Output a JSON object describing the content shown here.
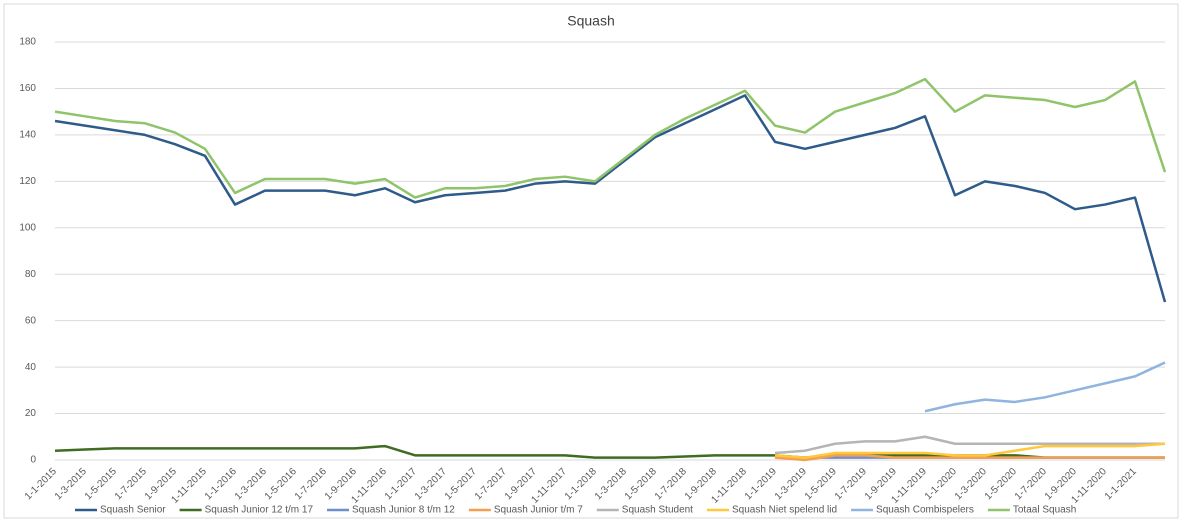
{
  "chart_data": {
    "type": "line",
    "title": "Squash",
    "categories": [
      "1-1-2015",
      "1-3-2015",
      "1-5-2015",
      "1-7-2015",
      "1-9-2015",
      "1-11-2015",
      "1-1-2016",
      "1-3-2016",
      "1-5-2016",
      "1-7-2016",
      "1-9-2016",
      "1-11-2016",
      "1-1-2017",
      "1-3-2017",
      "1-5-2017",
      "1-7-2017",
      "1-9-2017",
      "1-11-2017",
      "1-1-2018",
      "1-3-2018",
      "1-5-2018",
      "1-7-2018",
      "1-9-2018",
      "1-11-2018",
      "1-1-2019",
      "1-3-2019",
      "1-5-2019",
      "1-7-2019",
      "1-9-2019",
      "1-11-2019",
      "1-1-2020",
      "1-3-2020",
      "1-5-2020",
      "1-7-2020",
      "1-9-2020",
      "1-11-2020",
      "1-1-2021",
      null
    ],
    "series": [
      {
        "name": "Squash Senior",
        "color": "#2e5b8a",
        "values": [
          146,
          144,
          142,
          140,
          136,
          131,
          110,
          116,
          116,
          116,
          114,
          117,
          111,
          114,
          115,
          116,
          119,
          120,
          119,
          129,
          139,
          145,
          151,
          157,
          137,
          134,
          137,
          140,
          143,
          148,
          114,
          120,
          118,
          115,
          108,
          110,
          113,
          68
        ]
      },
      {
        "name": "Squash Junior 12 t/m 17",
        "color": "#3f6b22",
        "values": [
          4,
          4.5,
          5,
          5,
          5,
          5,
          5,
          5,
          5,
          5,
          5,
          6,
          2,
          2,
          2,
          2,
          2,
          2,
          1,
          1,
          1,
          1.5,
          2,
          2,
          2,
          1,
          2,
          2,
          2,
          2,
          2,
          2,
          2,
          1,
          1,
          1,
          1,
          1
        ]
      },
      {
        "name": "Squash Junior 8 t/m 12",
        "color": "#6e8fc9",
        "values": [
          null,
          null,
          null,
          null,
          null,
          null,
          null,
          null,
          null,
          null,
          null,
          null,
          null,
          null,
          null,
          null,
          null,
          null,
          null,
          null,
          null,
          null,
          null,
          null,
          1,
          1,
          1,
          1,
          1,
          1,
          1,
          1,
          1,
          1,
          1,
          1,
          1,
          1
        ]
      },
      {
        "name": "Squash Junior t/m 7",
        "color": "#f4a050",
        "values": [
          null,
          null,
          null,
          null,
          null,
          null,
          null,
          null,
          null,
          null,
          null,
          null,
          null,
          null,
          null,
          null,
          null,
          null,
          null,
          null,
          null,
          null,
          null,
          null,
          1,
          0,
          2,
          2,
          1,
          1,
          1,
          1,
          1,
          1,
          1,
          1,
          1,
          1
        ]
      },
      {
        "name": "Squash Student",
        "color": "#b5b5b5",
        "values": [
          null,
          null,
          null,
          null,
          null,
          null,
          null,
          null,
          null,
          null,
          null,
          null,
          null,
          null,
          null,
          null,
          null,
          null,
          null,
          null,
          null,
          null,
          null,
          null,
          3,
          4,
          7,
          8,
          8,
          10,
          7,
          7,
          7,
          7,
          7,
          7,
          7,
          7
        ]
      },
      {
        "name": "Squash Niet spelend lid",
        "color": "#ffc83d",
        "values": [
          null,
          null,
          null,
          null,
          null,
          null,
          null,
          null,
          null,
          null,
          null,
          null,
          null,
          null,
          null,
          null,
          null,
          null,
          null,
          null,
          null,
          null,
          null,
          null,
          2,
          1,
          3,
          3,
          3,
          3,
          2,
          2,
          4,
          6,
          6,
          6,
          6,
          7
        ]
      },
      {
        "name": "Squash Combispelers",
        "color": "#8fb4e0",
        "values": [
          null,
          null,
          null,
          null,
          null,
          null,
          null,
          null,
          null,
          null,
          null,
          null,
          null,
          null,
          null,
          null,
          null,
          null,
          null,
          null,
          null,
          null,
          null,
          null,
          null,
          null,
          null,
          null,
          null,
          21,
          24,
          26,
          25,
          27,
          30,
          33,
          36,
          42
        ]
      },
      {
        "name": "Totaal Squash",
        "color": "#8fc46a",
        "values": [
          150,
          148,
          146,
          145,
          141,
          134,
          115,
          121,
          121,
          121,
          119,
          121,
          113,
          117,
          117,
          118,
          121,
          122,
          120,
          130,
          140,
          147,
          153,
          159,
          144,
          141,
          150,
          154,
          158,
          164,
          150,
          157,
          156,
          155,
          152,
          155,
          163,
          124
        ]
      }
    ],
    "ylim": [
      0,
      180
    ],
    "yticks": [
      0,
      20,
      40,
      60,
      80,
      100,
      120,
      140,
      160,
      180
    ],
    "grid": true,
    "legend": "bottom"
  }
}
